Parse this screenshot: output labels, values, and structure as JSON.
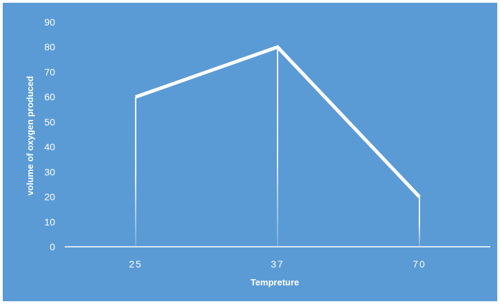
{
  "chart_data": {
    "type": "line",
    "title": "",
    "xlabel": "Tempreture",
    "ylabel": "volume of oxygen produced",
    "categories": [
      "25",
      "37",
      "70"
    ],
    "series": [
      {
        "values": [
          60,
          80,
          20
        ]
      }
    ],
    "ylim": [
      0,
      90
    ],
    "yticks": [
      0,
      10,
      20,
      30,
      40,
      50,
      60,
      70,
      80,
      90
    ],
    "drop_lines": true,
    "grid": false,
    "legend": "none",
    "colors": {
      "background": "#5b9bd5",
      "line": "#ffffff"
    }
  }
}
